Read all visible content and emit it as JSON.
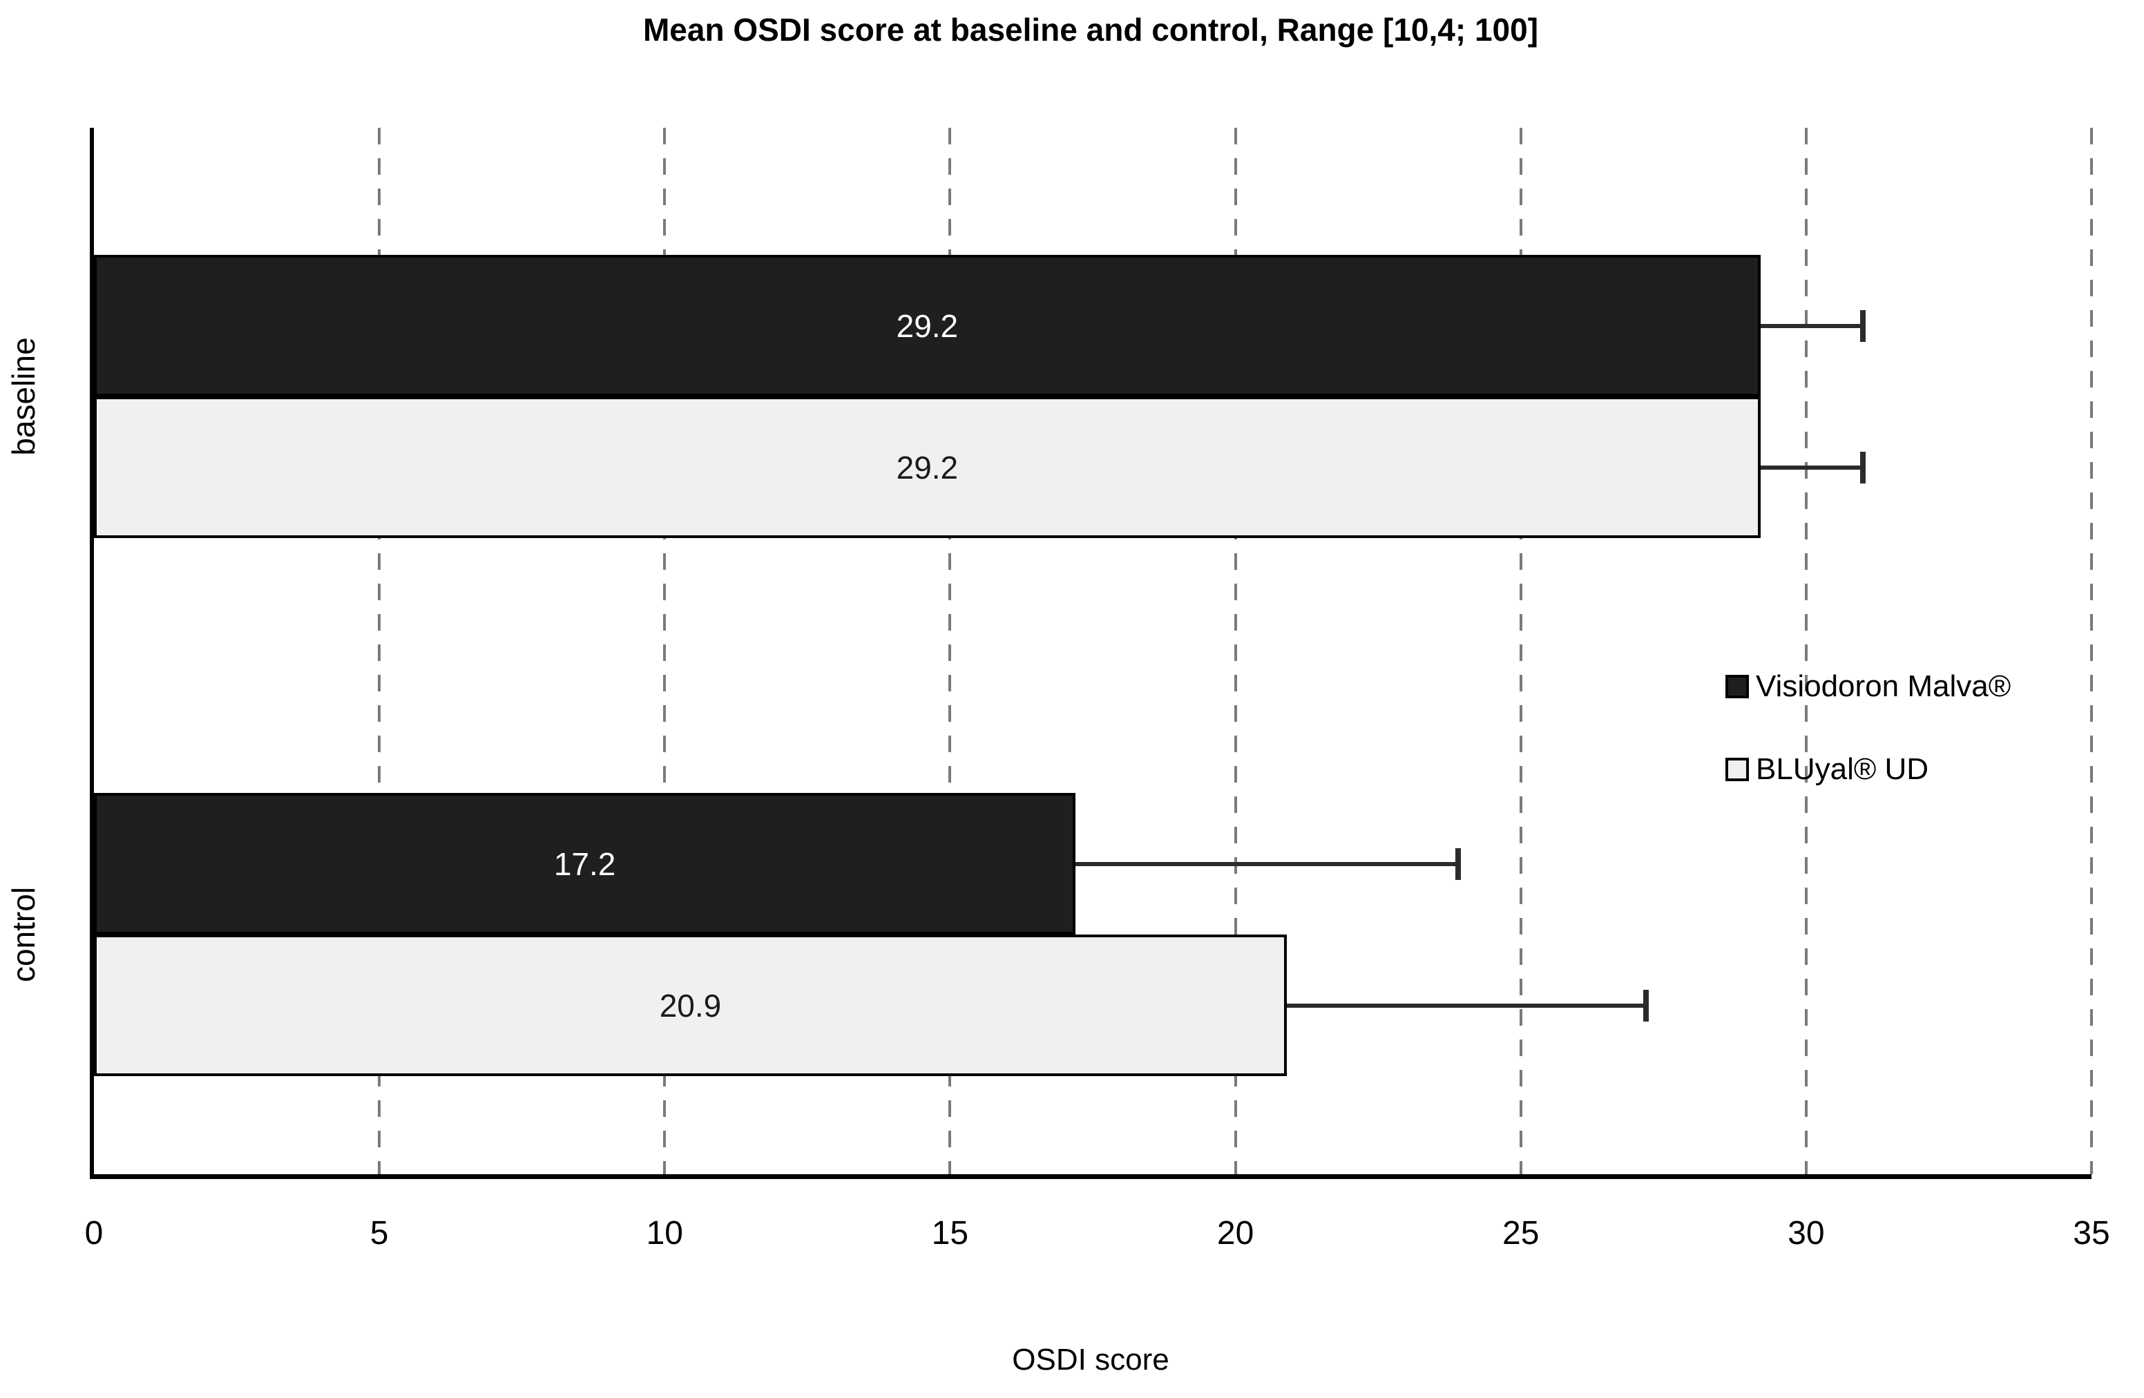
{
  "chart_data": {
    "type": "bar",
    "orientation": "horizontal",
    "title": "Mean OSDI score at baseline and control, Range [10,4; 100]",
    "xlabel": "OSDI score",
    "ylabel": "",
    "categories": [
      "baseline",
      "control"
    ],
    "series": [
      {
        "name": "Visiodoron Malva®",
        "values": [
          29.2,
          17.2
        ],
        "value_labels": [
          "29.2",
          "17.2"
        ],
        "error_upper_ends": [
          31.0,
          23.9
        ],
        "fill": "#1f1f1f",
        "label_color": "#ffffff"
      },
      {
        "name": "BLUyal® UD",
        "values": [
          29.2,
          20.9
        ],
        "value_labels": [
          "29.2",
          "20.9"
        ],
        "error_upper_ends": [
          31.0,
          27.2
        ],
        "fill": "#f0f0f0",
        "label_color": "#1a1a1a"
      }
    ],
    "xlim": [
      0,
      35
    ],
    "xticks": [
      0,
      5,
      10,
      15,
      20,
      25,
      30,
      35
    ],
    "grid": "vertical-dashed",
    "legend_position": "right-middle",
    "colors": {
      "axis": "#000000",
      "gridline": "#7a7a7a",
      "error_bar": "#2b2b2b",
      "bar_border": "#000000",
      "background": "#ffffff"
    }
  }
}
